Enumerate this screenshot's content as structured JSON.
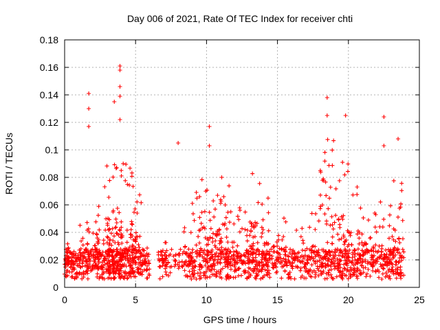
{
  "chart_data": {
    "type": "scatter",
    "title": "Day 006 of 2021, Rate Of TEC Index for receiver chti",
    "xlabel": "GPS time / hours",
    "ylabel": "ROTI / TECUs",
    "xlim": [
      0,
      25
    ],
    "ylim": [
      0,
      0.18
    ],
    "xticks": [
      0,
      5,
      10,
      15,
      20,
      25
    ],
    "xtick_labels": [
      "0",
      "5",
      "10",
      "15",
      "20",
      "25"
    ],
    "yticks": [
      0,
      0.02,
      0.04,
      0.06,
      0.08,
      0.1,
      0.12,
      0.14,
      0.16,
      0.18
    ],
    "ytick_labels": [
      "0",
      "0.02",
      "0.04",
      "0.06",
      "0.08",
      "0.1",
      "0.12",
      "0.14",
      "0.16",
      "0.18"
    ],
    "grid": true,
    "marker": "plus",
    "marker_color": "#ff0000",
    "notable_points": [
      {
        "x": 1.7,
        "y": 0.141
      },
      {
        "x": 1.7,
        "y": 0.13
      },
      {
        "x": 1.7,
        "y": 0.117
      },
      {
        "x": 3.5,
        "y": 0.135
      },
      {
        "x": 3.9,
        "y": 0.161
      },
      {
        "x": 3.9,
        "y": 0.158
      },
      {
        "x": 3.9,
        "y": 0.146
      },
      {
        "x": 3.9,
        "y": 0.139
      },
      {
        "x": 3.9,
        "y": 0.122
      },
      {
        "x": 8.0,
        "y": 0.105
      },
      {
        "x": 10.2,
        "y": 0.117
      },
      {
        "x": 10.2,
        "y": 0.103
      },
      {
        "x": 18.5,
        "y": 0.138
      },
      {
        "x": 18.5,
        "y": 0.125
      },
      {
        "x": 19.8,
        "y": 0.125
      },
      {
        "x": 22.5,
        "y": 0.124
      },
      {
        "x": 22.5,
        "y": 0.103
      },
      {
        "x": 23.5,
        "y": 0.108
      }
    ],
    "bursts": [
      {
        "x0": 0.0,
        "x1": 0.3,
        "ymax": 0.04,
        "n": 35
      },
      {
        "x0": 0.3,
        "x1": 1.0,
        "ymax": 0.022,
        "n": 60
      },
      {
        "x0": 1.0,
        "x1": 1.6,
        "ymax": 0.055,
        "n": 55
      },
      {
        "x0": 1.6,
        "x1": 2.2,
        "ymax": 0.045,
        "n": 50
      },
      {
        "x0": 2.2,
        "x1": 2.8,
        "ymax": 0.078,
        "n": 70
      },
      {
        "x0": 2.8,
        "x1": 3.4,
        "ymax": 0.095,
        "n": 90
      },
      {
        "x0": 3.4,
        "x1": 4.0,
        "ymax": 0.105,
        "n": 110
      },
      {
        "x0": 4.0,
        "x1": 4.8,
        "ymax": 0.09,
        "n": 100
      },
      {
        "x0": 4.8,
        "x1": 5.4,
        "ymax": 0.075,
        "n": 70
      },
      {
        "x0": 5.4,
        "x1": 6.0,
        "ymax": 0.03,
        "n": 40
      },
      {
        "x0": 6.6,
        "x1": 7.2,
        "ymax": 0.037,
        "n": 40
      },
      {
        "x0": 7.2,
        "x1": 8.4,
        "ymax": 0.028,
        "n": 30
      },
      {
        "x0": 8.4,
        "x1": 9.0,
        "ymax": 0.045,
        "n": 45
      },
      {
        "x0": 9.0,
        "x1": 10.0,
        "ymax": 0.08,
        "n": 80
      },
      {
        "x0": 10.0,
        "x1": 10.8,
        "ymax": 0.075,
        "n": 75
      },
      {
        "x0": 10.8,
        "x1": 11.6,
        "ymax": 0.085,
        "n": 85
      },
      {
        "x0": 11.6,
        "x1": 12.8,
        "ymax": 0.06,
        "n": 80
      },
      {
        "x0": 12.8,
        "x1": 13.6,
        "ymax": 0.09,
        "n": 85
      },
      {
        "x0": 13.6,
        "x1": 14.4,
        "ymax": 0.08,
        "n": 75
      },
      {
        "x0": 14.4,
        "x1": 15.6,
        "ymax": 0.055,
        "n": 70
      },
      {
        "x0": 15.6,
        "x1": 17.0,
        "ymax": 0.045,
        "n": 75
      },
      {
        "x0": 17.0,
        "x1": 18.0,
        "ymax": 0.06,
        "n": 65
      },
      {
        "x0": 18.0,
        "x1": 19.0,
        "ymax": 0.11,
        "n": 100
      },
      {
        "x0": 19.0,
        "x1": 20.0,
        "ymax": 0.095,
        "n": 100
      },
      {
        "x0": 20.0,
        "x1": 21.0,
        "ymax": 0.075,
        "n": 85
      },
      {
        "x0": 21.0,
        "x1": 22.2,
        "ymax": 0.06,
        "n": 75
      },
      {
        "x0": 22.2,
        "x1": 23.0,
        "ymax": 0.065,
        "n": 65
      },
      {
        "x0": 23.0,
        "x1": 23.9,
        "ymax": 0.085,
        "n": 80
      }
    ]
  }
}
